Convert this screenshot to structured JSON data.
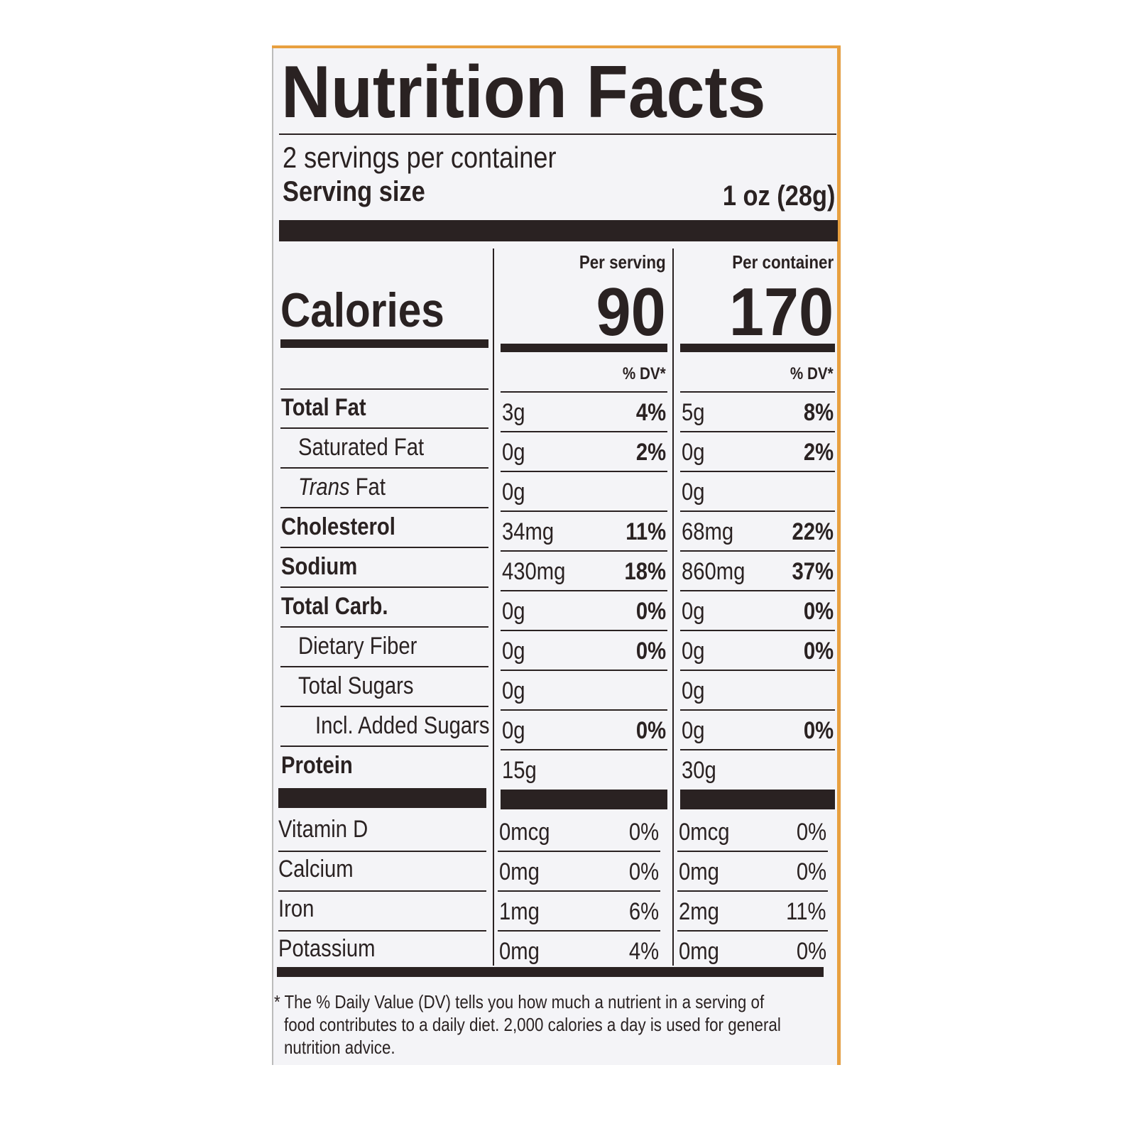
{
  "header": {
    "title": "Nutrition Facts",
    "servings": "2 servings per container",
    "serving_size_label": "Serving size",
    "serving_size_value": "1 oz (28g)"
  },
  "columns": [
    "Per serving",
    "Per container"
  ],
  "calories": {
    "label": "Calories",
    "values": [
      "90",
      "170"
    ]
  },
  "dv_header": "% DV*",
  "rows": [
    {
      "name": "Total Fat",
      "level": 0,
      "bold": true,
      "cells": [
        [
          "3g",
          "4%"
        ],
        [
          "5g",
          "8%"
        ]
      ]
    },
    {
      "name": "Saturated Fat",
      "level": 1,
      "bold": false,
      "cells": [
        [
          "0g",
          "2%"
        ],
        [
          "0g",
          "2%"
        ]
      ]
    },
    {
      "name": "Trans Fat",
      "level": 1,
      "bold": false,
      "italic_first_word": true,
      "cells": [
        [
          "0g"
        ],
        [
          "0g"
        ]
      ]
    },
    {
      "name": "Cholesterol",
      "level": 0,
      "bold": true,
      "cells": [
        [
          "34mg",
          "11%"
        ],
        [
          "68mg",
          "22%"
        ]
      ]
    },
    {
      "name": "Sodium",
      "level": 0,
      "bold": true,
      "cells": [
        [
          "430mg",
          "18%"
        ],
        [
          "860mg",
          "37%"
        ]
      ]
    },
    {
      "name": "Total Carb.",
      "level": 0,
      "bold": true,
      "cells": [
        [
          "0g",
          "0%"
        ],
        [
          "0g",
          "0%"
        ]
      ]
    },
    {
      "name": "Dietary Fiber",
      "level": 1,
      "bold": false,
      "cells": [
        [
          "0g",
          "0%"
        ],
        [
          "0g",
          "0%"
        ]
      ]
    },
    {
      "name": "Total Sugars",
      "level": 1,
      "bold": false,
      "cells": [
        [
          "0g"
        ],
        [
          "0g"
        ]
      ]
    },
    {
      "name": "Incl. Added Sugars",
      "level": 2,
      "bold": false,
      "cells": [
        [
          "0g",
          "0%"
        ],
        [
          "0g",
          "0%"
        ]
      ]
    },
    {
      "name": "Protein",
      "level": 0,
      "bold": true,
      "cells": [
        [
          "15g"
        ],
        [
          "30g"
        ]
      ]
    }
  ],
  "vitamins": [
    {
      "name": "Vitamin D",
      "cells": [
        [
          "0mcg",
          "0%"
        ],
        [
          "0mcg",
          "0%"
        ]
      ]
    },
    {
      "name": "Calcium",
      "cells": [
        [
          "0mg",
          "0%"
        ],
        [
          "0mg",
          "0%"
        ]
      ]
    },
    {
      "name": "Iron",
      "cells": [
        [
          "1mg",
          "6%"
        ],
        [
          "2mg",
          "11%"
        ]
      ]
    },
    {
      "name": "Potassium",
      "cells": [
        [
          "0mg",
          "4%"
        ],
        [
          "0mg",
          "0%"
        ]
      ]
    }
  ],
  "footnote": [
    "* The % Daily Value (DV) tells you how much a nutrient in a serving of",
    "food contributes to a daily diet. 2,000 calories a day is used for general",
    "nutrition advice."
  ]
}
